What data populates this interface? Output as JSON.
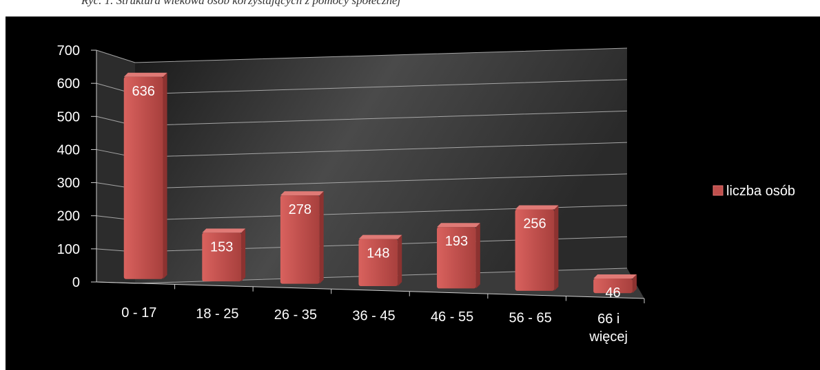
{
  "header": {
    "cropped_text": "Ryc. 1. Struktura wiekowa osób korzystających z pomocy społecznej"
  },
  "chart_data": {
    "type": "bar",
    "categories": [
      "0 - 17",
      "18 - 25",
      "26 - 35",
      "36 - 45",
      "46 - 55",
      "56 - 65",
      "66 i więcej"
    ],
    "series": [
      {
        "name": "liczba osób",
        "values": [
          636,
          153,
          278,
          148,
          193,
          256,
          46
        ]
      }
    ],
    "yticks": [
      "0",
      "100",
      "200",
      "300",
      "400",
      "500",
      "600",
      "700"
    ],
    "ylim": [
      0,
      700
    ],
    "grid": true,
    "legend": "right",
    "colors": {
      "bar": "#c0504d",
      "background": "#000000",
      "wall": "#3c3c3c",
      "grid": "#a6a6a6",
      "text": "#ffffff"
    }
  }
}
